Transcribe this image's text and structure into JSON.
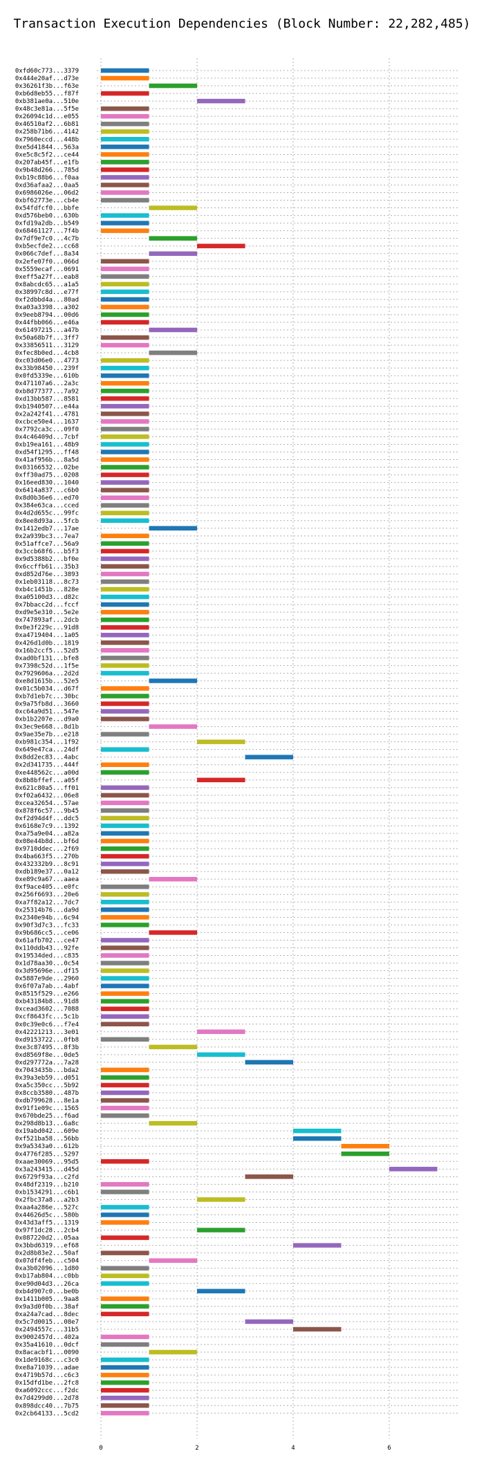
{
  "chart_data": {
    "type": "bar",
    "orientation": "horizontal",
    "title": "Transaction Execution Dependencies (Block Number: 22,282,485)",
    "xlabel": "",
    "ylabel": "",
    "xlim": [
      0,
      7
    ],
    "xticks": [
      "0",
      "2",
      "4",
      "6"
    ],
    "grid": true,
    "palette": [
      "#1f77b4",
      "#ff7f0e",
      "#2ca02c",
      "#d62728",
      "#9467bd",
      "#8c564b",
      "#e377c2",
      "#7f7f7f",
      "#bcbd22",
      "#17becf"
    ],
    "transactions": [
      {
        "label": "0xfd60c773...3379",
        "start": 0,
        "end": 1
      },
      {
        "label": "0x444e20af...d73e",
        "start": 0,
        "end": 1
      },
      {
        "label": "0x36261f3b...f63e",
        "start": 1,
        "end": 2
      },
      {
        "label": "0xb6d8eb55...f87f",
        "start": 0,
        "end": 1
      },
      {
        "label": "0xb381ae0a...510e",
        "start": 2,
        "end": 3
      },
      {
        "label": "0x48c3e81a...5f5e",
        "start": 0,
        "end": 1
      },
      {
        "label": "0x26094c1d...e055",
        "start": 0,
        "end": 1
      },
      {
        "label": "0x46510af2...6b81",
        "start": 0,
        "end": 1
      },
      {
        "label": "0x258b71b6...4142",
        "start": 0,
        "end": 1
      },
      {
        "label": "0x7960eccd...448b",
        "start": 0,
        "end": 1
      },
      {
        "label": "0xe5d41844...563a",
        "start": 0,
        "end": 1
      },
      {
        "label": "0xe5c8c5f2...ce44",
        "start": 0,
        "end": 1
      },
      {
        "label": "0x207ab45f...e1fb",
        "start": 0,
        "end": 1
      },
      {
        "label": "0x9b48d266...785d",
        "start": 0,
        "end": 1
      },
      {
        "label": "0xb19c88b6...f0aa",
        "start": 0,
        "end": 1
      },
      {
        "label": "0xd36afaa2...0aa5",
        "start": 0,
        "end": 1
      },
      {
        "label": "0x6986026e...06d2",
        "start": 0,
        "end": 1
      },
      {
        "label": "0xbf62773e...cb4e",
        "start": 0,
        "end": 1
      },
      {
        "label": "0x54fdfcf0...bbfe",
        "start": 1,
        "end": 2
      },
      {
        "label": "0xd576beb0...630b",
        "start": 0,
        "end": 1
      },
      {
        "label": "0xfd19a2db...b549",
        "start": 0,
        "end": 1
      },
      {
        "label": "0x68461127...7f4b",
        "start": 0,
        "end": 1
      },
      {
        "label": "0x7df9e7c0...4c7b",
        "start": 1,
        "end": 2
      },
      {
        "label": "0xb5ecfde2...cc68",
        "start": 2,
        "end": 3
      },
      {
        "label": "0x066c7def...8a34",
        "start": 1,
        "end": 2
      },
      {
        "label": "0x2efe07f0...066d",
        "start": 0,
        "end": 1
      },
      {
        "label": "0x5559ecaf...0691",
        "start": 0,
        "end": 1
      },
      {
        "label": "0xeff5a27f...eab8",
        "start": 0,
        "end": 1
      },
      {
        "label": "0x8abcdc65...a1a5",
        "start": 0,
        "end": 1
      },
      {
        "label": "0x38997c8d...e77f",
        "start": 0,
        "end": 1
      },
      {
        "label": "0xf2dbbd4a...80ad",
        "start": 0,
        "end": 1
      },
      {
        "label": "0xa03a3398...a302",
        "start": 0,
        "end": 1
      },
      {
        "label": "0x9eeb8794...00d6",
        "start": 0,
        "end": 1
      },
      {
        "label": "0x44fbb066...e46a",
        "start": 0,
        "end": 1
      },
      {
        "label": "0x61497215...a47b",
        "start": 1,
        "end": 2
      },
      {
        "label": "0x50a68b7f...3ff7",
        "start": 0,
        "end": 1
      },
      {
        "label": "0x33856511...3129",
        "start": 0,
        "end": 1
      },
      {
        "label": "0xfec8b0ed...4cb8",
        "start": 1,
        "end": 2
      },
      {
        "label": "0xc03d06e0...4773",
        "start": 0,
        "end": 1
      },
      {
        "label": "0x33b98450...239f",
        "start": 0,
        "end": 1
      },
      {
        "label": "0x0fd5339e...610b",
        "start": 0,
        "end": 1
      },
      {
        "label": "0x471107a6...2a3c",
        "start": 0,
        "end": 1
      },
      {
        "label": "0xb8d77377...7a92",
        "start": 0,
        "end": 1
      },
      {
        "label": "0xd13bb587...8581",
        "start": 0,
        "end": 1
      },
      {
        "label": "0xb1940507...e44a",
        "start": 0,
        "end": 1
      },
      {
        "label": "0x2a242f41...4781",
        "start": 0,
        "end": 1
      },
      {
        "label": "0xcbce50e4...1637",
        "start": 0,
        "end": 1
      },
      {
        "label": "0x7792ca3c...09f0",
        "start": 0,
        "end": 1
      },
      {
        "label": "0x4c46409d...7cbf",
        "start": 0,
        "end": 1
      },
      {
        "label": "0xb19ea161...48b9",
        "start": 0,
        "end": 1
      },
      {
        "label": "0xd54f1295...ff48",
        "start": 0,
        "end": 1
      },
      {
        "label": "0x41af956b...8a5d",
        "start": 0,
        "end": 1
      },
      {
        "label": "0x03166532...02be",
        "start": 0,
        "end": 1
      },
      {
        "label": "0xff30ad75...0208",
        "start": 0,
        "end": 1
      },
      {
        "label": "0x16eed830...1040",
        "start": 0,
        "end": 1
      },
      {
        "label": "0x6414a837...c6b0",
        "start": 0,
        "end": 1
      },
      {
        "label": "0x8d0b36e6...ed70",
        "start": 0,
        "end": 1
      },
      {
        "label": "0x384e63ca...cced",
        "start": 0,
        "end": 1
      },
      {
        "label": "0x4d2d655c...99fc",
        "start": 0,
        "end": 1
      },
      {
        "label": "0x8ee8d93a...5fcb",
        "start": 0,
        "end": 1
      },
      {
        "label": "0x1412edb7...17ae",
        "start": 1,
        "end": 2
      },
      {
        "label": "0x2a939bc3...7ea7",
        "start": 0,
        "end": 1
      },
      {
        "label": "0x51affce7...56a9",
        "start": 0,
        "end": 1
      },
      {
        "label": "0x3ccb68f6...b5f3",
        "start": 0,
        "end": 1
      },
      {
        "label": "0x9d5388b2...bf0e",
        "start": 0,
        "end": 1
      },
      {
        "label": "0x6ccffb61...35b3",
        "start": 0,
        "end": 1
      },
      {
        "label": "0xd852d76e...3893",
        "start": 0,
        "end": 1
      },
      {
        "label": "0x1eb03118...8c73",
        "start": 0,
        "end": 1
      },
      {
        "label": "0xb4c1451b...828e",
        "start": 0,
        "end": 1
      },
      {
        "label": "0xa05100d3...d82c",
        "start": 0,
        "end": 1
      },
      {
        "label": "0x7bbacc2d...fccf",
        "start": 0,
        "end": 1
      },
      {
        "label": "0xd9e5e310...5e2e",
        "start": 0,
        "end": 1
      },
      {
        "label": "0x747893af...2dcb",
        "start": 0,
        "end": 1
      },
      {
        "label": "0x0e3f229c...91d8",
        "start": 0,
        "end": 1
      },
      {
        "label": "0xa4719404...1a05",
        "start": 0,
        "end": 1
      },
      {
        "label": "0x426d1d0b...1819",
        "start": 0,
        "end": 1
      },
      {
        "label": "0x16b2ccf5...52d5",
        "start": 0,
        "end": 1
      },
      {
        "label": "0xad0bf131...bfe8",
        "start": 0,
        "end": 1
      },
      {
        "label": "0x7398c52d...1f5e",
        "start": 0,
        "end": 1
      },
      {
        "label": "0x7929606a...2d2d",
        "start": 0,
        "end": 1
      },
      {
        "label": "0xe8d1615b...52e5",
        "start": 1,
        "end": 2
      },
      {
        "label": "0x01c5b034...d67f",
        "start": 0,
        "end": 1
      },
      {
        "label": "0xb7d1eb7c...30bc",
        "start": 0,
        "end": 1
      },
      {
        "label": "0x9a75fb8d...3660",
        "start": 0,
        "end": 1
      },
      {
        "label": "0xc64a9d51...547e",
        "start": 0,
        "end": 1
      },
      {
        "label": "0xb1b2207e...d9a0",
        "start": 0,
        "end": 1
      },
      {
        "label": "0x3ec9e668...8d1b",
        "start": 1,
        "end": 2
      },
      {
        "label": "0x9ae35e7b...e218",
        "start": 0,
        "end": 1
      },
      {
        "label": "0xb981c354...1f92",
        "start": 2,
        "end": 3
      },
      {
        "label": "0x649e47ca...24df",
        "start": 0,
        "end": 1
      },
      {
        "label": "0x8dd2ec83...4abc",
        "start": 3,
        "end": 4
      },
      {
        "label": "0x2d341735...444f",
        "start": 0,
        "end": 1
      },
      {
        "label": "0xe448562c...a00d",
        "start": 0,
        "end": 1
      },
      {
        "label": "0x8b8bffef...a05f",
        "start": 2,
        "end": 3
      },
      {
        "label": "0x621c80a5...ff01",
        "start": 0,
        "end": 1
      },
      {
        "label": "0xf02a6432...06e8",
        "start": 0,
        "end": 1
      },
      {
        "label": "0xcea32654...57ae",
        "start": 0,
        "end": 1
      },
      {
        "label": "0x878f6c57...9b45",
        "start": 0,
        "end": 1
      },
      {
        "label": "0xf2d94d4f...ddc5",
        "start": 0,
        "end": 1
      },
      {
        "label": "0x6168e7c9...1392",
        "start": 0,
        "end": 1
      },
      {
        "label": "0xa75a9e04...a82a",
        "start": 0,
        "end": 1
      },
      {
        "label": "0x08e44b8d...bf6d",
        "start": 0,
        "end": 1
      },
      {
        "label": "0x9710ddec...2f69",
        "start": 0,
        "end": 1
      },
      {
        "label": "0x4ba663f5...270b",
        "start": 0,
        "end": 1
      },
      {
        "label": "0x432332b9...8c91",
        "start": 0,
        "end": 1
      },
      {
        "label": "0xdb189e37...0a12",
        "start": 0,
        "end": 1
      },
      {
        "label": "0xe89c9a67...aaea",
        "start": 1,
        "end": 2
      },
      {
        "label": "0xf9ace405...e0fc",
        "start": 0,
        "end": 1
      },
      {
        "label": "0x256f6693...20e6",
        "start": 0,
        "end": 1
      },
      {
        "label": "0xa7f82a12...7dc7",
        "start": 0,
        "end": 1
      },
      {
        "label": "0x25314b76...da9d",
        "start": 0,
        "end": 1
      },
      {
        "label": "0x2340e94b...6c94",
        "start": 0,
        "end": 1
      },
      {
        "label": "0x90f3d7c3...fc33",
        "start": 0,
        "end": 1
      },
      {
        "label": "0x9b686cc5...ce06",
        "start": 1,
        "end": 2
      },
      {
        "label": "0x61afb702...ce47",
        "start": 0,
        "end": 1
      },
      {
        "label": "0x110ddb43...92fe",
        "start": 0,
        "end": 1
      },
      {
        "label": "0x19534ded...c835",
        "start": 0,
        "end": 1
      },
      {
        "label": "0x1d78aa30...0c54",
        "start": 0,
        "end": 1
      },
      {
        "label": "0x3d95696e...df15",
        "start": 0,
        "end": 1
      },
      {
        "label": "0x5887e9de...2960",
        "start": 0,
        "end": 1
      },
      {
        "label": "0x6f07a7ab...4abf",
        "start": 0,
        "end": 1
      },
      {
        "label": "0x8515f529...e266",
        "start": 0,
        "end": 1
      },
      {
        "label": "0xb43184b8...91d8",
        "start": 0,
        "end": 1
      },
      {
        "label": "0xcead3602...7088",
        "start": 0,
        "end": 1
      },
      {
        "label": "0xcf8643fc...5c1b",
        "start": 0,
        "end": 1
      },
      {
        "label": "0x0c39e0c6...f7e4",
        "start": 0,
        "end": 1
      },
      {
        "label": "0x42221213...3e01",
        "start": 2,
        "end": 3
      },
      {
        "label": "0xd9153722...0fb8",
        "start": 0,
        "end": 1
      },
      {
        "label": "0xe3c87495...8f3b",
        "start": 1,
        "end": 2
      },
      {
        "label": "0xd8569f8e...0de5",
        "start": 2,
        "end": 3
      },
      {
        "label": "0xd297772a...7a28",
        "start": 3,
        "end": 4
      },
      {
        "label": "0x7043435b...bda2",
        "start": 0,
        "end": 1
      },
      {
        "label": "0x39a3eb59...d051",
        "start": 0,
        "end": 1
      },
      {
        "label": "0xa5c350cc...5b92",
        "start": 0,
        "end": 1
      },
      {
        "label": "0x8ccb3580...487b",
        "start": 0,
        "end": 1
      },
      {
        "label": "0xdb799628...8e1a",
        "start": 0,
        "end": 1
      },
      {
        "label": "0x91f1e09c...1565",
        "start": 0,
        "end": 1
      },
      {
        "label": "0x670bde25...f6ad",
        "start": 0,
        "end": 1
      },
      {
        "label": "0x298d8b13...6a8c",
        "start": 1,
        "end": 2
      },
      {
        "label": "0x19abd042...609e",
        "start": 4,
        "end": 5
      },
      {
        "label": "0xf521ba58...56bb",
        "start": 4,
        "end": 5
      },
      {
        "label": "0x9a5343a0...612b",
        "start": 5,
        "end": 6
      },
      {
        "label": "0x4776f285...5297",
        "start": 5,
        "end": 6
      },
      {
        "label": "0xaae30069...95d5",
        "start": 0,
        "end": 1
      },
      {
        "label": "0x3a243415...d45d",
        "start": 6,
        "end": 7
      },
      {
        "label": "0x6729f93a...c2fd",
        "start": 3,
        "end": 4
      },
      {
        "label": "0x48df2319...b210",
        "start": 0,
        "end": 1
      },
      {
        "label": "0xb1534291...c6b1",
        "start": 0,
        "end": 1
      },
      {
        "label": "0x2fbc37a8...a2b3",
        "start": 2,
        "end": 3
      },
      {
        "label": "0xaa4a286e...527c",
        "start": 0,
        "end": 1
      },
      {
        "label": "0x44626d5c...580b",
        "start": 0,
        "end": 1
      },
      {
        "label": "0x43d3aff5...1319",
        "start": 0,
        "end": 1
      },
      {
        "label": "0x97f1dc28...2cb4",
        "start": 2,
        "end": 3
      },
      {
        "label": "0x087220d2...05aa",
        "start": 0,
        "end": 1
      },
      {
        "label": "0x3bbd6319...ef68",
        "start": 4,
        "end": 5
      },
      {
        "label": "0x2d8b83e2...50af",
        "start": 0,
        "end": 1
      },
      {
        "label": "0x07df4feb...c504",
        "start": 1,
        "end": 2
      },
      {
        "label": "0xa3b02096...1d80",
        "start": 0,
        "end": 1
      },
      {
        "label": "0xb17ab804...c0bb",
        "start": 0,
        "end": 1
      },
      {
        "label": "0xe90d04d3...26ca",
        "start": 0,
        "end": 1
      },
      {
        "label": "0xb4d907c0...be0b",
        "start": 2,
        "end": 3
      },
      {
        "label": "0x1411b005...9aa8",
        "start": 0,
        "end": 1
      },
      {
        "label": "0x9a3d0f0b...38af",
        "start": 0,
        "end": 1
      },
      {
        "label": "0xa24a7cad...8dec",
        "start": 0,
        "end": 1
      },
      {
        "label": "0x5c7d0015...08e7",
        "start": 3,
        "end": 4
      },
      {
        "label": "0x2494557c...31b5",
        "start": 4,
        "end": 5
      },
      {
        "label": "0x9002457d...402a",
        "start": 0,
        "end": 1
      },
      {
        "label": "0x35a41610...0dcf",
        "start": 0,
        "end": 1
      },
      {
        "label": "0x8acacbf1...0090",
        "start": 1,
        "end": 2
      },
      {
        "label": "0x1de9168c...c3c0",
        "start": 0,
        "end": 1
      },
      {
        "label": "0xe8a71039...adae",
        "start": 0,
        "end": 1
      },
      {
        "label": "0x4719b57d...c6c3",
        "start": 0,
        "end": 1
      },
      {
        "label": "0x15dfd1be...2fc8",
        "start": 0,
        "end": 1
      },
      {
        "label": "0xa6092ccc...f2dc",
        "start": 0,
        "end": 1
      },
      {
        "label": "0x7d4299d0...2d78",
        "start": 0,
        "end": 1
      },
      {
        "label": "0x898dcc40...7b75",
        "start": 0,
        "end": 1
      },
      {
        "label": "0x2cb64133...5cd2",
        "start": 0,
        "end": 1
      }
    ]
  }
}
